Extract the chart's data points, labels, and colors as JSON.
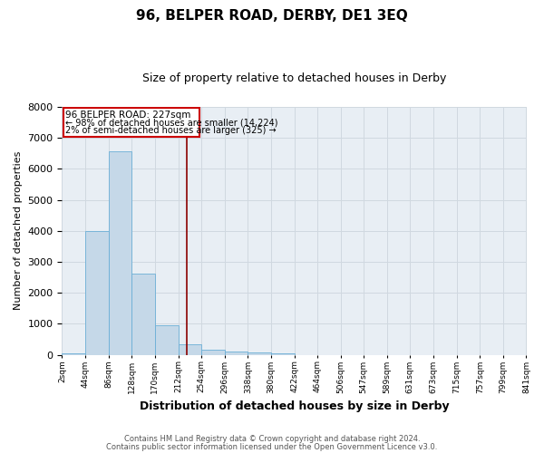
{
  "title": "96, BELPER ROAD, DERBY, DE1 3EQ",
  "subtitle": "Size of property relative to detached houses in Derby",
  "xlabel": "Distribution of detached houses by size in Derby",
  "ylabel": "Number of detached properties",
  "footnote1": "Contains HM Land Registry data © Crown copyright and database right 2024.",
  "footnote2": "Contains public sector information licensed under the Open Government Licence v3.0.",
  "annotation_title": "96 BELPER ROAD: 227sqm",
  "annotation_line1": "← 98% of detached houses are smaller (14,224)",
  "annotation_line2": "2% of semi-detached houses are larger (325) →",
  "property_size": 227,
  "bar_edges": [
    2,
    44,
    86,
    128,
    170,
    212,
    254,
    296,
    338,
    380,
    422,
    464,
    506,
    547,
    589,
    631,
    673,
    715,
    757,
    799,
    841
  ],
  "bar_heights": [
    60,
    4000,
    6550,
    2620,
    960,
    330,
    155,
    115,
    70,
    55,
    0,
    0,
    0,
    0,
    0,
    0,
    0,
    0,
    0,
    0
  ],
  "bar_color": "#c5d8e8",
  "bar_edge_color": "#6bafd6",
  "vline_color": "#8b0000",
  "vline_x": 227,
  "ylim": [
    0,
    8000
  ],
  "yticks": [
    0,
    1000,
    2000,
    3000,
    4000,
    5000,
    6000,
    7000,
    8000
  ],
  "tick_labels": [
    "2sqm",
    "44sqm",
    "86sqm",
    "128sqm",
    "170sqm",
    "212sqm",
    "254sqm",
    "296sqm",
    "338sqm",
    "380sqm",
    "422sqm",
    "464sqm",
    "506sqm",
    "547sqm",
    "589sqm",
    "631sqm",
    "673sqm",
    "715sqm",
    "757sqm",
    "799sqm",
    "841sqm"
  ],
  "grid_color": "#d0d8e0",
  "background_color": "#e8eef4",
  "box_edge_color": "#cc0000",
  "box_face_color": "#ffffff"
}
